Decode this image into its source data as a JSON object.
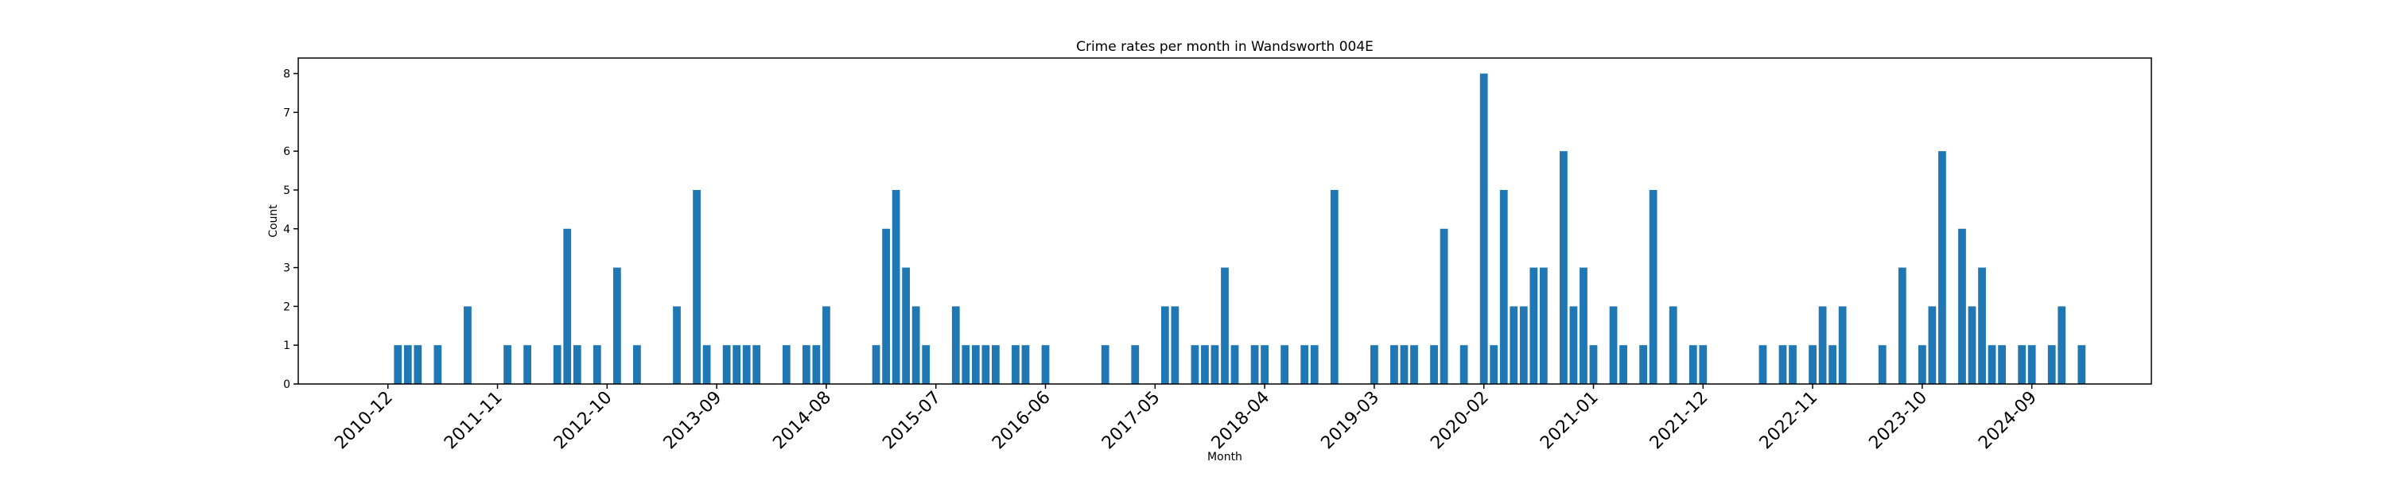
{
  "chart_data": {
    "type": "bar",
    "title": "Crime rates per month in Wandsworth 004E",
    "xlabel": "Month",
    "ylabel": "Count",
    "x_range": [
      "2010-03",
      "2025-09"
    ],
    "ylim": [
      0,
      8.4
    ],
    "yticks": [
      0,
      1,
      2,
      3,
      4,
      5,
      6,
      7,
      8
    ],
    "xticks": [
      "2010-12",
      "2011-11",
      "2012-10",
      "2013-09",
      "2014-08",
      "2015-07",
      "2016-06",
      "2017-05",
      "2018-04",
      "2019-03",
      "2020-02",
      "2021-01",
      "2021-12",
      "2022-11",
      "2023-10",
      "2024-09"
    ],
    "grid": false,
    "color": "#1f77b4",
    "points": [
      {
        "month": "2011-01",
        "value": 1
      },
      {
        "month": "2011-02",
        "value": 1
      },
      {
        "month": "2011-03",
        "value": 1
      },
      {
        "month": "2011-05",
        "value": 1
      },
      {
        "month": "2011-08",
        "value": 2
      },
      {
        "month": "2011-12",
        "value": 1
      },
      {
        "month": "2012-02",
        "value": 1
      },
      {
        "month": "2012-05",
        "value": 1
      },
      {
        "month": "2012-06",
        "value": 4
      },
      {
        "month": "2012-07",
        "value": 1
      },
      {
        "month": "2012-09",
        "value": 1
      },
      {
        "month": "2012-11",
        "value": 3
      },
      {
        "month": "2013-01",
        "value": 1
      },
      {
        "month": "2013-05",
        "value": 2
      },
      {
        "month": "2013-07",
        "value": 5
      },
      {
        "month": "2013-08",
        "value": 1
      },
      {
        "month": "2013-10",
        "value": 1
      },
      {
        "month": "2013-11",
        "value": 1
      },
      {
        "month": "2013-12",
        "value": 1
      },
      {
        "month": "2014-01",
        "value": 1
      },
      {
        "month": "2014-04",
        "value": 1
      },
      {
        "month": "2014-06",
        "value": 1
      },
      {
        "month": "2014-07",
        "value": 1
      },
      {
        "month": "2014-08",
        "value": 2
      },
      {
        "month": "2015-01",
        "value": 1
      },
      {
        "month": "2015-02",
        "value": 4
      },
      {
        "month": "2015-03",
        "value": 5
      },
      {
        "month": "2015-04",
        "value": 3
      },
      {
        "month": "2015-05",
        "value": 2
      },
      {
        "month": "2015-06",
        "value": 1
      },
      {
        "month": "2015-09",
        "value": 2
      },
      {
        "month": "2015-10",
        "value": 1
      },
      {
        "month": "2015-11",
        "value": 1
      },
      {
        "month": "2015-12",
        "value": 1
      },
      {
        "month": "2016-01",
        "value": 1
      },
      {
        "month": "2016-03",
        "value": 1
      },
      {
        "month": "2016-04",
        "value": 1
      },
      {
        "month": "2016-06",
        "value": 1
      },
      {
        "month": "2016-12",
        "value": 1
      },
      {
        "month": "2017-03",
        "value": 1
      },
      {
        "month": "2017-06",
        "value": 2
      },
      {
        "month": "2017-07",
        "value": 2
      },
      {
        "month": "2017-09",
        "value": 1
      },
      {
        "month": "2017-10",
        "value": 1
      },
      {
        "month": "2017-11",
        "value": 1
      },
      {
        "month": "2017-12",
        "value": 3
      },
      {
        "month": "2018-01",
        "value": 1
      },
      {
        "month": "2018-03",
        "value": 1
      },
      {
        "month": "2018-04",
        "value": 1
      },
      {
        "month": "2018-06",
        "value": 1
      },
      {
        "month": "2018-08",
        "value": 1
      },
      {
        "month": "2018-09",
        "value": 1
      },
      {
        "month": "2018-11",
        "value": 5
      },
      {
        "month": "2019-03",
        "value": 1
      },
      {
        "month": "2019-05",
        "value": 1
      },
      {
        "month": "2019-06",
        "value": 1
      },
      {
        "month": "2019-07",
        "value": 1
      },
      {
        "month": "2019-09",
        "value": 1
      },
      {
        "month": "2019-10",
        "value": 4
      },
      {
        "month": "2019-12",
        "value": 1
      },
      {
        "month": "2020-02",
        "value": 8
      },
      {
        "month": "2020-03",
        "value": 1
      },
      {
        "month": "2020-04",
        "value": 5
      },
      {
        "month": "2020-05",
        "value": 2
      },
      {
        "month": "2020-06",
        "value": 2
      },
      {
        "month": "2020-07",
        "value": 3
      },
      {
        "month": "2020-08",
        "value": 3
      },
      {
        "month": "2020-10",
        "value": 6
      },
      {
        "month": "2020-11",
        "value": 2
      },
      {
        "month": "2020-12",
        "value": 3
      },
      {
        "month": "2021-01",
        "value": 1
      },
      {
        "month": "2021-03",
        "value": 2
      },
      {
        "month": "2021-04",
        "value": 1
      },
      {
        "month": "2021-06",
        "value": 1
      },
      {
        "month": "2021-07",
        "value": 5
      },
      {
        "month": "2021-09",
        "value": 2
      },
      {
        "month": "2021-11",
        "value": 1
      },
      {
        "month": "2021-12",
        "value": 1
      },
      {
        "month": "2022-06",
        "value": 1
      },
      {
        "month": "2022-08",
        "value": 1
      },
      {
        "month": "2022-09",
        "value": 1
      },
      {
        "month": "2022-11",
        "value": 1
      },
      {
        "month": "2022-12",
        "value": 2
      },
      {
        "month": "2023-01",
        "value": 1
      },
      {
        "month": "2023-02",
        "value": 2
      },
      {
        "month": "2023-06",
        "value": 1
      },
      {
        "month": "2023-08",
        "value": 3
      },
      {
        "month": "2023-10",
        "value": 1
      },
      {
        "month": "2023-11",
        "value": 2
      },
      {
        "month": "2023-12",
        "value": 6
      },
      {
        "month": "2024-02",
        "value": 4
      },
      {
        "month": "2024-03",
        "value": 2
      },
      {
        "month": "2024-04",
        "value": 3
      },
      {
        "month": "2024-05",
        "value": 1
      },
      {
        "month": "2024-06",
        "value": 1
      },
      {
        "month": "2024-08",
        "value": 1
      },
      {
        "month": "2024-09",
        "value": 1
      },
      {
        "month": "2024-11",
        "value": 1
      },
      {
        "month": "2024-12",
        "value": 2
      },
      {
        "month": "2025-02",
        "value": 1
      }
    ]
  }
}
